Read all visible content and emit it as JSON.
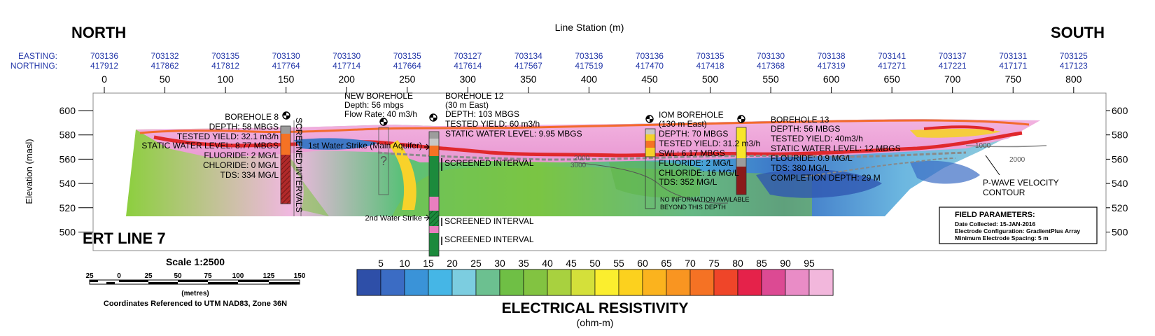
{
  "header": {
    "north": "NORTH",
    "south": "SOUTH",
    "line_station": "Line Station (m)",
    "easting_label": "EASTING:",
    "northing_label": "NORTHING:"
  },
  "stations": [
    {
      "station": 0,
      "easting": "703136",
      "northing": "417912"
    },
    {
      "station": 50,
      "easting": "703132",
      "northing": "417862"
    },
    {
      "station": 100,
      "easting": "703135",
      "northing": "417812"
    },
    {
      "station": 150,
      "easting": "703130",
      "northing": "417764"
    },
    {
      "station": 200,
      "easting": "703130",
      "northing": "417714"
    },
    {
      "station": 250,
      "easting": "703135",
      "northing": "417664"
    },
    {
      "station": 300,
      "easting": "703127",
      "northing": "417614"
    },
    {
      "station": 350,
      "easting": "703134",
      "northing": "417567"
    },
    {
      "station": 400,
      "easting": "703136",
      "northing": "417519"
    },
    {
      "station": 450,
      "easting": "703136",
      "northing": "417470"
    },
    {
      "station": 500,
      "easting": "703135",
      "northing": "417418"
    },
    {
      "station": 550,
      "easting": "703130",
      "northing": "417368"
    },
    {
      "station": 600,
      "easting": "703138",
      "northing": "417319"
    },
    {
      "station": 650,
      "easting": "703141",
      "northing": "417271"
    },
    {
      "station": 700,
      "easting": "703137",
      "northing": "417221"
    },
    {
      "station": 750,
      "easting": "703131",
      "northing": "417171"
    },
    {
      "station": 800,
      "easting": "703125",
      "northing": "417123"
    }
  ],
  "elevation": {
    "label": "Elevation (masl)",
    "ticks": [
      600,
      580,
      560,
      540,
      520,
      500
    ]
  },
  "section_title": "ERT LINE 7",
  "boreholes": {
    "bh8": [
      "BOREHOLE 8",
      "DEPTH: 58 MBGS",
      "TESTED YIELD: 32.1 m3/h",
      "STATIC WATER LEVEL: 8.77 MBGS",
      "FLUORIDE: 2 MG/L",
      "CHLORIDE: 0 MG/L",
      "TDS: 334 MG/L"
    ],
    "bh8_screen": "SCREENED INTERVALS",
    "new": [
      "NEW BOREHOLE",
      "Depth: 56 mbgs",
      "Flow Rate: 40 m3/h"
    ],
    "new_strike": "1st Water Strike (Main Aquifer)",
    "question": "?",
    "bh12": [
      "BOREHOLE 12",
      "(30 m East)",
      "DEPTH: 103 MBGS",
      "TESTED YIELD: 60 m3/h",
      "STATIC WATER LEVEL: 9.95 MBGS"
    ],
    "bh12_screens": [
      "SCREENED INTERVAL",
      "SCREENED INTERVAL",
      "SCREENED INTERVAL"
    ],
    "bh12_strike2": "2nd Water Strike",
    "iom": [
      "IOM BOREHOLE",
      "(130 m East)",
      "DEPTH: 70 MBGS",
      "TESTED YIELD: 31.2 m3/h",
      "SWL: 6.17 MBGS",
      "FLUORIDE: 2 MG/L",
      "CHLORIDE: 16 MG/L",
      "TDS: 352 MG/L"
    ],
    "iom_noinfo": [
      "NO INFORMATION AVAILABLE",
      "BEYOND THIS DEPTH"
    ],
    "bh13": [
      "BOREHOLE 13",
      "DEPTH: 56 MBGS",
      "TESTED YIELD: 40m3/h",
      "STATIC WATER LEVEL: 12 MBGS",
      "FLOURIDE: 0.9 MG/L",
      "TDS: 380 MG/L",
      "COMPLETION DEPTH: 29 M"
    ]
  },
  "contours": {
    "c1000": "1000",
    "c2000a": "2000",
    "c3000": "3000",
    "c2000b": "2000",
    "label": [
      "P-WAVE VELOCITY",
      "CONTOUR"
    ]
  },
  "field_params": {
    "title": "FIELD PARAMETERS:",
    "lines": [
      "Date Collected: 15-JAN-2016",
      "Electrode Configuration: GradientPlus Array",
      "Minimum Electrode Spacing: 5 m"
    ]
  },
  "scale": {
    "title": "Scale 1:2500",
    "ticks": [
      "25",
      "0",
      "25",
      "50",
      "75",
      "100",
      "125",
      "150"
    ],
    "units": "(metres)",
    "coords": "Coordinates Referenced to UTM NAD83, Zone 36N"
  },
  "colorbar": {
    "values": [
      "5",
      "10",
      "15",
      "20",
      "25",
      "30",
      "35",
      "40",
      "45",
      "50",
      "55",
      "60",
      "65",
      "70",
      "75",
      "80",
      "85",
      "90",
      "95"
    ],
    "colors": [
      "#2e4fa8",
      "#3b6cc4",
      "#3a93d8",
      "#45b6e6",
      "#7ccde0",
      "#6cc090",
      "#6fbf45",
      "#82c341",
      "#a8d13f",
      "#d4e03a",
      "#fbee2e",
      "#fcd11e",
      "#fbb31e",
      "#f99521",
      "#f57224",
      "#ef4529",
      "#e5224a",
      "#dc4a93",
      "#e98cc6",
      "#f2b7dc"
    ],
    "title": "ELECTRICAL RESISTIVITY",
    "units": "(ohm-m)"
  }
}
